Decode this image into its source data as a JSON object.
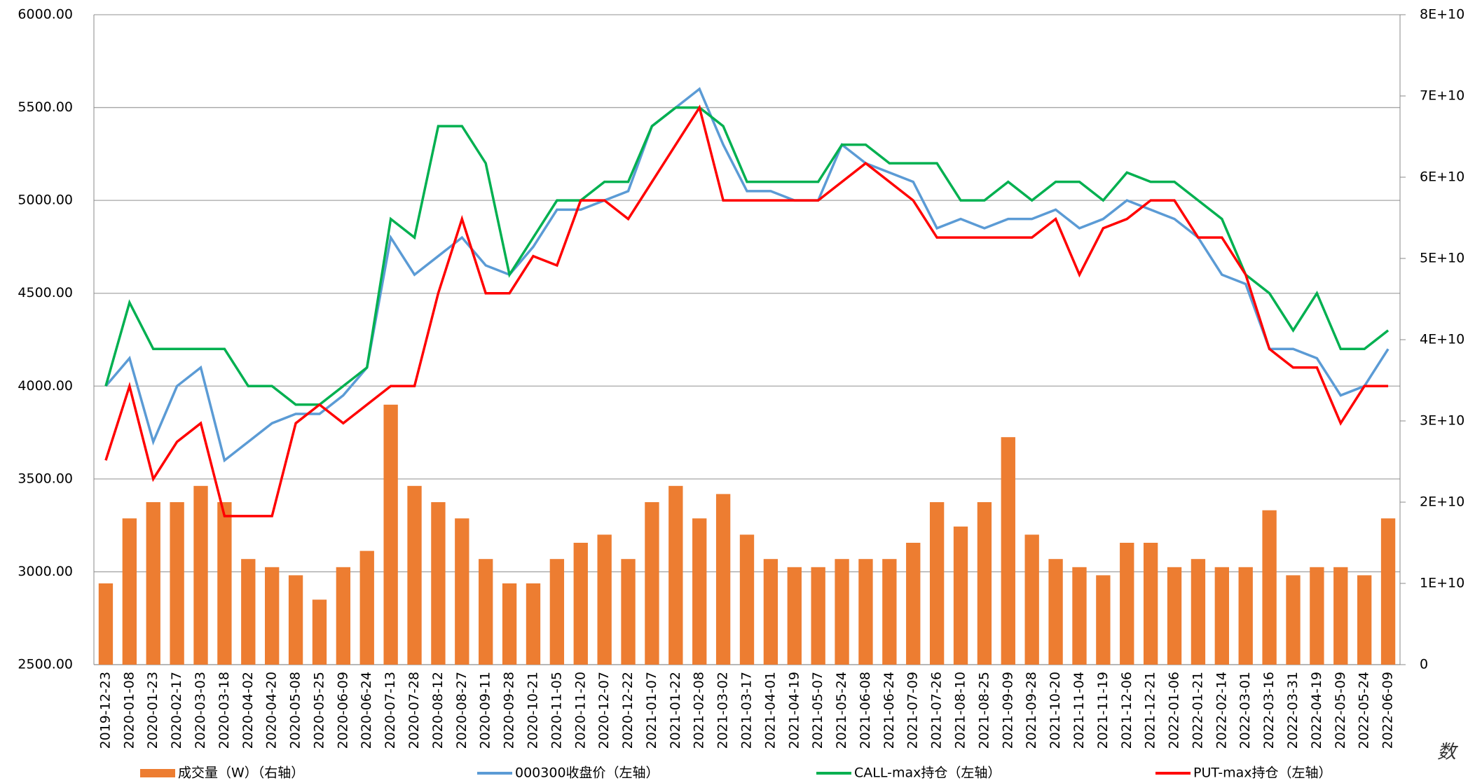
{
  "chart_data": {
    "type": "combo",
    "source_note": "数",
    "categories": [
      "2019-12-23",
      "2020-01-08",
      "2020-01-23",
      "2020-02-17",
      "2020-03-03",
      "2020-03-18",
      "2020-04-02",
      "2020-04-20",
      "2020-05-08",
      "2020-05-25",
      "2020-06-09",
      "2020-06-24",
      "2020-07-13",
      "2020-07-28",
      "2020-08-12",
      "2020-08-27",
      "2020-09-11",
      "2020-09-28",
      "2020-10-21",
      "2020-11-05",
      "2020-11-20",
      "2020-12-07",
      "2020-12-22",
      "2021-01-07",
      "2021-01-22",
      "2021-02-08",
      "2021-03-02",
      "2021-03-17",
      "2021-04-01",
      "2021-04-19",
      "2021-05-07",
      "2021-05-24",
      "2021-06-08",
      "2021-06-24",
      "2021-07-09",
      "2021-07-26",
      "2021-08-10",
      "2021-08-25",
      "2021-09-09",
      "2021-09-28",
      "2021-10-20",
      "2021-11-04",
      "2021-11-19",
      "2021-12-06",
      "2021-12-21",
      "2022-01-06",
      "2022-01-21",
      "2022-02-14",
      "2022-03-01",
      "2022-03-16",
      "2022-03-31",
      "2022-04-19",
      "2022-05-09",
      "2022-05-24",
      "2022-06-09"
    ],
    "series": [
      {
        "name": "成交量（W）（右轴）",
        "type": "bar",
        "axis": "y2",
        "color": "#ed7d31",
        "values": [
          10000000000,
          18000000000,
          20000000000,
          20000000000,
          22000000000,
          20000000000,
          13000000000,
          12000000000,
          11000000000,
          8000000000,
          12000000000,
          14000000000,
          32000000000,
          22000000000,
          20000000000,
          18000000000,
          13000000000,
          10000000000,
          10000000000,
          13000000000,
          15000000000,
          16000000000,
          13000000000,
          20000000000,
          22000000000,
          18000000000,
          21000000000,
          16000000000,
          13000000000,
          12000000000,
          12000000000,
          13000000000,
          13000000000,
          13000000000,
          15000000000,
          20000000000,
          17000000000,
          20000000000,
          28000000000,
          16000000000,
          13000000000,
          12000000000,
          11000000000,
          15000000000,
          15000000000,
          12000000000,
          13000000000,
          12000000000,
          12000000000,
          19000000000,
          11000000000,
          12000000000,
          12000000000,
          11000000000,
          18000000000
        ]
      },
      {
        "name": "000300收盘价（左轴）",
        "type": "line",
        "color": "#5b9bd5",
        "values": [
          4000,
          4150,
          3700,
          4000,
          4100,
          3600,
          3700,
          3800,
          3850,
          3850,
          3950,
          4100,
          4800,
          4600,
          4700,
          4800,
          4650,
          4600,
          4750,
          4950,
          4950,
          5000,
          5050,
          5400,
          5500,
          5600,
          5300,
          5050,
          5050,
          5000,
          5000,
          5300,
          5200,
          5150,
          5100,
          4850,
          4900,
          4850,
          4900,
          4900,
          4950,
          4850,
          4900,
          5000,
          4950,
          4900,
          4800,
          4600,
          4550,
          4200,
          4200,
          4150,
          3950,
          4000,
          4200
        ]
      },
      {
        "name": "CALL-max持仓（左轴）",
        "type": "line",
        "color": "#00b050",
        "values": [
          4000,
          4450,
          4200,
          4200,
          4200,
          4200,
          4000,
          4000,
          3900,
          3900,
          4000,
          4100,
          4900,
          4800,
          5400,
          5400,
          5200,
          4600,
          4800,
          5000,
          5000,
          5100,
          5100,
          5400,
          5500,
          5500,
          5400,
          5100,
          5100,
          5100,
          5100,
          5300,
          5300,
          5200,
          5200,
          5200,
          5000,
          5000,
          5100,
          5000,
          5100,
          5100,
          5000,
          5150,
          5100,
          5100,
          5000,
          4900,
          4600,
          4500,
          4300,
          4500,
          4200,
          4200,
          4300
        ]
      },
      {
        "name": "PUT-max持仓（左轴）",
        "type": "line",
        "color": "#ff0000",
        "values": [
          3600,
          4000,
          3500,
          3700,
          3800,
          3300,
          3300,
          3300,
          3800,
          3900,
          3800,
          3900,
          4000,
          4000,
          4500,
          4900,
          4500,
          4500,
          4700,
          4650,
          5000,
          5000,
          4900,
          5100,
          5300,
          5500,
          5000,
          5000,
          5000,
          5000,
          5000,
          5100,
          5200,
          5100,
          5000,
          4800,
          4800,
          4800,
          4800,
          4800,
          4900,
          4600,
          4850,
          4900,
          5000,
          5000,
          4800,
          4800,
          4600,
          4200,
          4100,
          4100,
          3800,
          4000,
          4000
        ]
      }
    ],
    "ylim": [
      2500,
      6000
    ],
    "yticks": [
      {
        "value": 2500,
        "label": "2500.00"
      },
      {
        "value": 3000,
        "label": "3000.00"
      },
      {
        "value": 3500,
        "label": "3500.00"
      },
      {
        "value": 4000,
        "label": "4000.00"
      },
      {
        "value": 4500,
        "label": "4500.00"
      },
      {
        "value": 5000,
        "label": "5000.00"
      },
      {
        "value": 5500,
        "label": "5500.00"
      },
      {
        "value": 6000,
        "label": "6000.00"
      }
    ],
    "y2lim": [
      0,
      80000000000
    ],
    "y2ticks": [
      0,
      {
        "value": 10000000000,
        "label": "1E+10"
      },
      {
        "value": 20000000000,
        "label": "2E+10"
      },
      {
        "value": 30000000000,
        "label": "3E+10"
      },
      {
        "value": 40000000000,
        "label": "4E+10"
      },
      {
        "value": 50000000000,
        "label": "5E+10"
      },
      {
        "value": 60000000000,
        "label": "6E+10"
      },
      {
        "value": 70000000000,
        "label": "7E+10"
      },
      {
        "value": 80000000000,
        "label": "8E+10"
      }
    ],
    "grid": true,
    "legend": "bottom"
  }
}
